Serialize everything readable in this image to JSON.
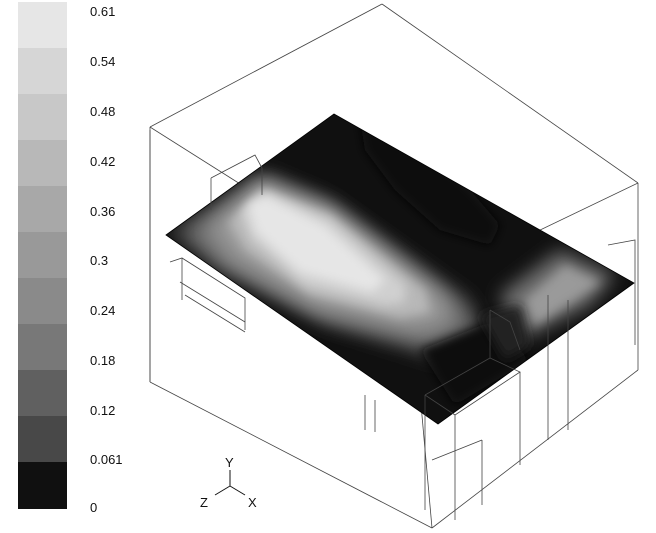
{
  "legend": {
    "ticks": [
      "0.61",
      "0.54",
      "0.48",
      "0.42",
      "0.36",
      "0.3",
      "0.24",
      "0.18",
      "0.12",
      "0.061",
      "0"
    ],
    "colors": [
      "#e6e6e6",
      "#d6d6d6",
      "#c8c8c8",
      "#b8b8b8",
      "#a8a8a8",
      "#999999",
      "#8a8a8a",
      "#787878",
      "#606060",
      "#484848",
      "#101010"
    ]
  },
  "axes": {
    "y": "Y",
    "z": "Z",
    "x": "X"
  }
}
